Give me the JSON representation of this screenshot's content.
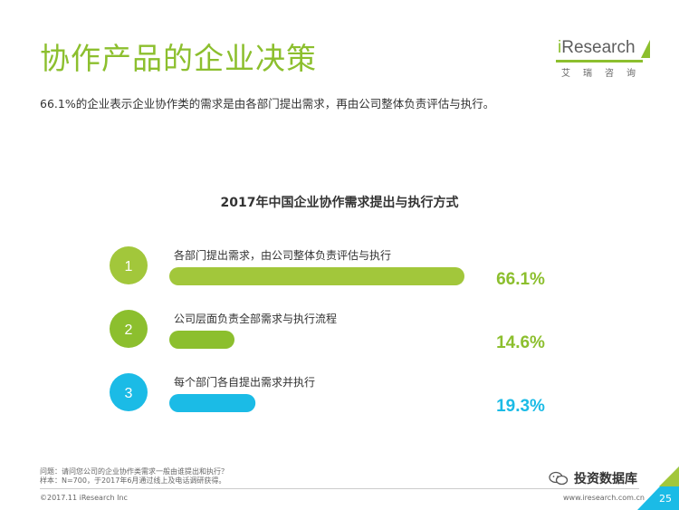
{
  "header": {
    "title": "协作产品的企业决策",
    "subtitle": "66.1%的企业表示企业协作类的需求是由各部门提出需求，再由公司整体负责评估与执行。"
  },
  "logo": {
    "brand": "Research",
    "brand_i": "i",
    "sub": "艾瑞咨询"
  },
  "chart_data": {
    "type": "bar",
    "title": "2017年中国企业协作需求提出与执行方式",
    "categories": [
      "各部门提出需求，由公司整体负责评估与执行",
      "公司层面负责全部需求与执行流程",
      "每个部门各自提出需求并执行"
    ],
    "index_labels": [
      "1",
      "2",
      "3"
    ],
    "values": [
      66.1,
      14.6,
      19.3
    ],
    "value_labels": [
      "66.1%",
      "14.6%",
      "19.3%"
    ],
    "colors": [
      "#a2c73b",
      "#8cbf2e",
      "#1bbbe6"
    ],
    "value_colors": [
      "#8cbf2e",
      "#8cbf2e",
      "#1bbbe6"
    ],
    "xlim": [
      0,
      66.1
    ],
    "unit": "%"
  },
  "footnotes": {
    "question": "问题：请问您公司的企业协作类需求一般由谁提出和执行？",
    "sample": "样本：N=700，于2017年6月通过线上及电话调研获得。"
  },
  "footer": {
    "copyright": "©2017.11 iResearch Inc",
    "site": "www.iresearch.com.cn",
    "page": "25",
    "watermark": "投资数据库"
  }
}
